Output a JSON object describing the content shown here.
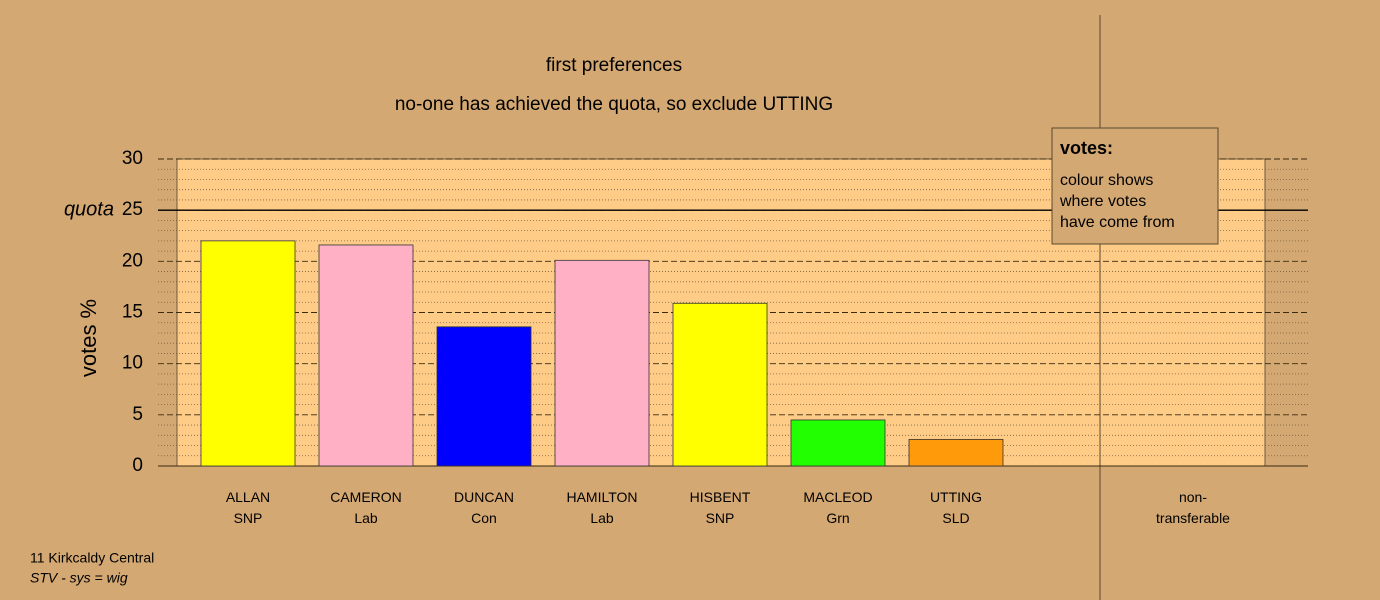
{
  "chart_data": {
    "type": "bar",
    "title": "first preferences",
    "subtitle": "no-one has achieved the quota, so exclude UTTING",
    "y_label": "votes %",
    "categories": [
      "ALLAN",
      "CAMERON",
      "DUNCAN",
      "HAMILTON",
      "HISBENT",
      "MACLEOD",
      "UTTING",
      "non-transferable"
    ],
    "parties": [
      "SNP",
      "Lab",
      "Con",
      "Lab",
      "SNP",
      "Grn",
      "SLD",
      null
    ],
    "values": [
      22,
      21.6,
      13.6,
      20.1,
      15.9,
      4.5,
      2.6,
      0
    ],
    "colors": [
      "#ffff00",
      "#ffb0c4",
      "#0000ff",
      "#ffb0c4",
      "#ffff00",
      "#22ff00",
      "#ff9a0a",
      "#ff9a0a"
    ],
    "ylim": [
      0,
      30
    ],
    "yticks": [
      0,
      5,
      10,
      15,
      20,
      25,
      30
    ],
    "minor_yticks": [
      1,
      2,
      3,
      4,
      6,
      7,
      8,
      9,
      11,
      12,
      13,
      14,
      16,
      17,
      18,
      19,
      21,
      22,
      23,
      24,
      26,
      27,
      28,
      29
    ],
    "grid": true,
    "quota": 25,
    "quota_label": "quota",
    "legend_box": {
      "title": "votes:",
      "lines": [
        "colour shows",
        "where votes",
        "have come from"
      ]
    },
    "footer": [
      "11 Kirkcaldy Central",
      "STV - sys = wig"
    ]
  }
}
